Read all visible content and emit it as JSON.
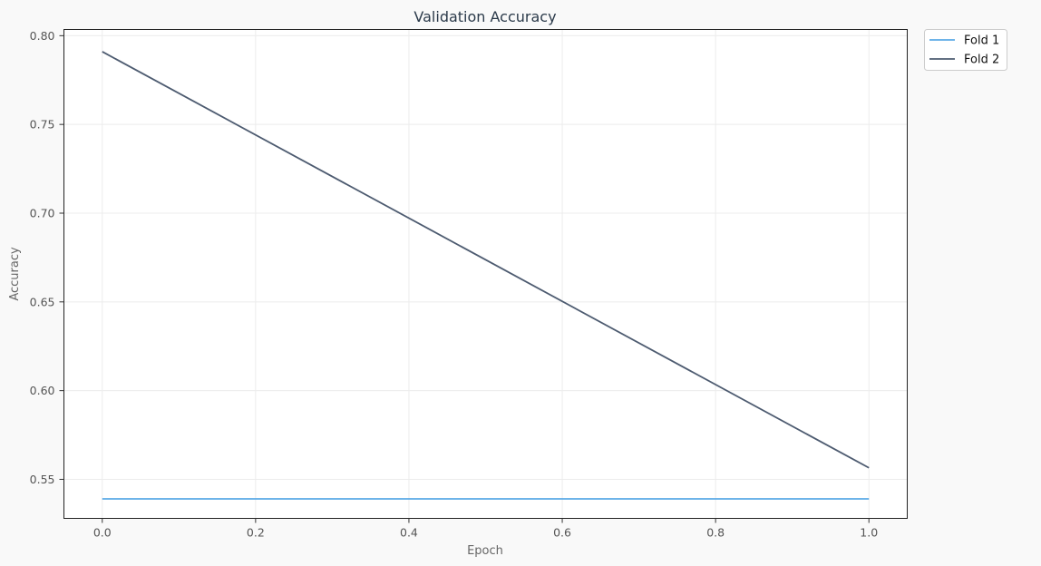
{
  "chart_data": {
    "type": "line",
    "title": "Validation Accuracy",
    "xlabel": "Epoch",
    "ylabel": "Accuracy",
    "xlim": [
      -0.05,
      1.05
    ],
    "ylim": [
      0.528,
      0.8035
    ],
    "x_ticks": [
      "0.0",
      "0.2",
      "0.4",
      "0.6",
      "0.8",
      "1.0"
    ],
    "y_ticks": [
      "0.55",
      "0.60",
      "0.65",
      "0.70",
      "0.75",
      "0.80"
    ],
    "grid": true,
    "legend_position": "outside-top-right",
    "series": [
      {
        "name": "Fold 1",
        "color": "#5aa9e6",
        "x": [
          0.0,
          1.0
        ],
        "y": [
          0.539,
          0.539
        ]
      },
      {
        "name": "Fold 2",
        "color": "#4d5b70",
        "x": [
          0.0,
          1.0
        ],
        "y": [
          0.791,
          0.5565
        ]
      }
    ]
  }
}
